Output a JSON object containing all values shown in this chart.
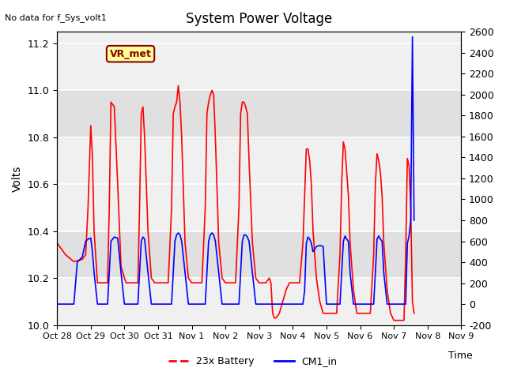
{
  "title": "System Power Voltage",
  "top_left_text": "No data for f_Sys_volt1",
  "ylabel_left": "Volts",
  "xlabel": "Time",
  "ylim_left": [
    10.0,
    11.25
  ],
  "ylim_right": [
    -200,
    2600
  ],
  "yticks_left": [
    10.0,
    10.2,
    10.4,
    10.6,
    10.8,
    11.0,
    11.2
  ],
  "yticks_right": [
    -200,
    0,
    200,
    400,
    600,
    800,
    1000,
    1200,
    1400,
    1600,
    1800,
    2000,
    2200,
    2400,
    2600
  ],
  "xtick_labels": [
    "Oct 28",
    "Oct 29",
    "Oct 30",
    "Oct 31",
    "Nov 1",
    "Nov 2",
    "Nov 3",
    "Nov 4",
    "Nov 5",
    "Nov 6",
    "Nov 7",
    "Nov 8",
    "Nov 9"
  ],
  "legend_entries": [
    "23x Battery",
    "CM1_in"
  ],
  "annotation_label": "VR_met",
  "annotation_color": "#8B0000",
  "annotation_bg": "#FFFF99",
  "annotation_border": "#8B0000",
  "plot_bg": "#f0f0f0",
  "shade_color": "#e0e0e0",
  "grid_color": "white",
  "red_line_color": "red",
  "blue_line_color": "blue",
  "red_x": [
    0.0,
    0.25,
    0.5,
    0.75,
    0.85,
    0.92,
    1.0,
    1.05,
    1.1,
    1.2,
    1.4,
    1.5,
    1.55,
    1.6,
    1.7,
    1.8,
    1.9,
    2.0,
    2.05,
    2.1,
    2.3,
    2.4,
    2.45,
    2.5,
    2.55,
    2.6,
    2.7,
    2.8,
    2.9,
    3.0,
    3.05,
    3.1,
    3.3,
    3.4,
    3.45,
    3.5,
    3.55,
    3.6,
    3.65,
    3.7,
    3.8,
    3.9,
    4.0,
    4.05,
    4.1,
    4.3,
    4.4,
    4.45,
    4.5,
    4.55,
    4.6,
    4.65,
    4.7,
    4.8,
    4.9,
    5.0,
    5.05,
    5.1,
    5.3,
    5.4,
    5.45,
    5.5,
    5.55,
    5.6,
    5.65,
    5.7,
    5.8,
    5.9,
    6.0,
    6.05,
    6.1,
    6.2,
    6.3,
    6.35,
    6.4,
    6.45,
    6.5,
    6.6,
    6.7,
    6.8,
    6.9,
    7.0,
    7.05,
    7.1,
    7.2,
    7.3,
    7.35,
    7.4,
    7.45,
    7.5,
    7.55,
    7.6,
    7.7,
    7.8,
    7.9,
    8.0,
    8.05,
    8.1,
    8.3,
    8.4,
    8.45,
    8.5,
    8.55,
    8.6,
    8.65,
    8.7,
    8.8,
    8.9,
    9.0,
    9.05,
    9.1,
    9.3,
    9.4,
    9.45,
    9.5,
    9.55,
    9.6,
    9.65,
    9.7,
    9.8,
    9.9,
    10.0,
    10.05,
    10.1,
    10.3,
    10.35,
    10.4,
    10.45,
    10.5,
    10.55,
    10.6
  ],
  "red_y": [
    10.35,
    10.3,
    10.27,
    10.28,
    10.3,
    10.5,
    10.85,
    10.72,
    10.4,
    10.18,
    10.18,
    10.18,
    10.5,
    10.95,
    10.93,
    10.6,
    10.25,
    10.2,
    10.18,
    10.18,
    10.18,
    10.18,
    10.5,
    10.9,
    10.93,
    10.8,
    10.4,
    10.2,
    10.18,
    10.18,
    10.18,
    10.18,
    10.18,
    10.5,
    10.9,
    10.93,
    10.95,
    11.02,
    10.95,
    10.8,
    10.35,
    10.2,
    10.18,
    10.18,
    10.18,
    10.18,
    10.5,
    10.9,
    10.95,
    10.98,
    11.0,
    10.98,
    10.8,
    10.35,
    10.2,
    10.18,
    10.18,
    10.18,
    10.18,
    10.5,
    10.9,
    10.95,
    10.95,
    10.93,
    10.9,
    10.7,
    10.35,
    10.2,
    10.18,
    10.18,
    10.18,
    10.18,
    10.2,
    10.18,
    10.05,
    10.03,
    10.03,
    10.05,
    10.1,
    10.15,
    10.18,
    10.18,
    10.18,
    10.18,
    10.18,
    10.35,
    10.55,
    10.75,
    10.75,
    10.7,
    10.6,
    10.4,
    10.2,
    10.1,
    10.05,
    10.05,
    10.05,
    10.05,
    10.05,
    10.3,
    10.6,
    10.78,
    10.75,
    10.65,
    10.55,
    10.35,
    10.15,
    10.05,
    10.05,
    10.05,
    10.05,
    10.05,
    10.3,
    10.6,
    10.73,
    10.7,
    10.65,
    10.55,
    10.35,
    10.15,
    10.05,
    10.02,
    10.02,
    10.02,
    10.02,
    10.3,
    10.71,
    10.68,
    10.5,
    10.1,
    10.05
  ],
  "blue_x": [
    0.0,
    0.25,
    0.5,
    0.6,
    0.75,
    0.85,
    0.92,
    1.0,
    1.05,
    1.1,
    1.2,
    1.4,
    1.5,
    1.55,
    1.6,
    1.7,
    1.8,
    1.9,
    2.0,
    2.05,
    2.1,
    2.3,
    2.4,
    2.45,
    2.5,
    2.55,
    2.6,
    2.7,
    2.8,
    2.9,
    3.0,
    3.05,
    3.1,
    3.3,
    3.4,
    3.45,
    3.5,
    3.55,
    3.6,
    3.65,
    3.7,
    3.8,
    3.9,
    4.0,
    4.05,
    4.1,
    4.3,
    4.4,
    4.45,
    4.5,
    4.55,
    4.6,
    4.65,
    4.7,
    4.8,
    4.9,
    5.0,
    5.05,
    5.1,
    5.3,
    5.4,
    5.45,
    5.5,
    5.55,
    5.6,
    5.65,
    5.7,
    5.8,
    5.9,
    6.0,
    6.05,
    6.1,
    6.2,
    6.3,
    6.35,
    6.4,
    6.45,
    6.5,
    6.6,
    6.7,
    6.8,
    6.9,
    7.0,
    7.05,
    7.1,
    7.2,
    7.3,
    7.35,
    7.4,
    7.45,
    7.5,
    7.55,
    7.6,
    7.7,
    7.8,
    7.9,
    8.0,
    8.05,
    8.1,
    8.3,
    8.4,
    8.45,
    8.5,
    8.55,
    8.6,
    8.65,
    8.7,
    8.8,
    8.9,
    9.0,
    9.05,
    9.1,
    9.3,
    9.4,
    9.45,
    9.5,
    9.55,
    9.6,
    9.65,
    9.7,
    9.8,
    9.9,
    10.0,
    10.05,
    10.1,
    10.3,
    10.35,
    10.4,
    10.45,
    10.5,
    10.55,
    10.6
  ],
  "blue_y": [
    0,
    0,
    0,
    400,
    450,
    600,
    620,
    630,
    500,
    300,
    0,
    0,
    0,
    300,
    600,
    640,
    630,
    300,
    0,
    0,
    0,
    0,
    0,
    300,
    600,
    640,
    620,
    300,
    0,
    0,
    0,
    0,
    0,
    0,
    0,
    300,
    600,
    660,
    680,
    660,
    600,
    300,
    0,
    0,
    0,
    0,
    0,
    0,
    300,
    600,
    660,
    680,
    660,
    600,
    300,
    0,
    0,
    0,
    0,
    0,
    0,
    300,
    600,
    660,
    660,
    640,
    600,
    300,
    0,
    0,
    0,
    0,
    0,
    0,
    0,
    0,
    0,
    0,
    0,
    0,
    0,
    0,
    0,
    0,
    0,
    0,
    0,
    130,
    580,
    640,
    620,
    580,
    500,
    550,
    560,
    550,
    0,
    0,
    0,
    0,
    0,
    300,
    600,
    650,
    620,
    600,
    300,
    0,
    0,
    0,
    0,
    0,
    0,
    0,
    300,
    620,
    650,
    620,
    600,
    300,
    0,
    0,
    0,
    0,
    0,
    0,
    0,
    580,
    650,
    800,
    2550,
    800
  ]
}
